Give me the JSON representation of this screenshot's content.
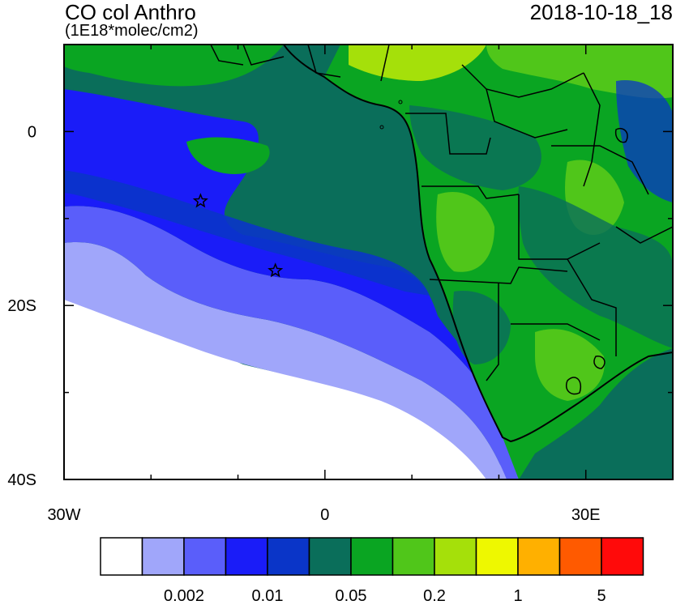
{
  "header": {
    "title": "CO col Anthro",
    "units": "(1E18*molec/cm2)",
    "timestamp": "2018-10-18_18"
  },
  "axes": {
    "y_ticks": [
      {
        "lat": 0,
        "label": "0"
      },
      {
        "lat": -20,
        "label": "20S"
      },
      {
        "lat": -40,
        "label": "40S"
      }
    ],
    "x_ticks": [
      {
        "lon": -30,
        "label": "30W"
      },
      {
        "lon": 0,
        "label": "0"
      },
      {
        "lon": 30,
        "label": "30E"
      }
    ]
  },
  "markers": [
    {
      "name": "star-marker-1",
      "lon": -14.3,
      "lat": -8.0
    },
    {
      "name": "star-marker-2",
      "lon": -5.7,
      "lat": -16.0
    }
  ],
  "colorbar": {
    "colors": [
      "#ffffff",
      "#a0a6fa",
      "#5a5efa",
      "#1a1cf8",
      "#0a35c8",
      "#0a6e5a",
      "#0aa522",
      "#50c61a",
      "#a5e00a",
      "#eef800",
      "#ffb000",
      "#ff5a00",
      "#ff0a0a"
    ],
    "tick_labels": [
      {
        "after_box": 2,
        "label": "0.002"
      },
      {
        "after_box": 4,
        "label": "0.01"
      },
      {
        "after_box": 6,
        "label": "0.05"
      },
      {
        "after_box": 8,
        "label": "0.2"
      },
      {
        "after_box": 10,
        "label": "1"
      },
      {
        "after_box": 12,
        "label": "5"
      }
    ]
  }
}
